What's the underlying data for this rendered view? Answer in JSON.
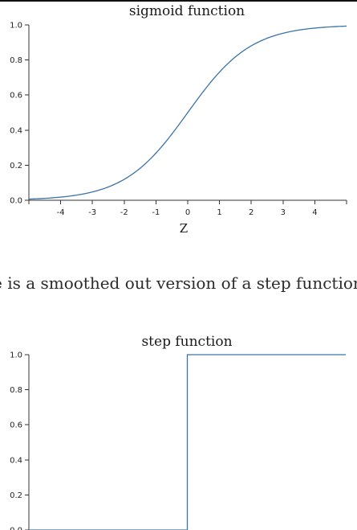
{
  "prose": {
    "text": "e is a smoothed out version of a step function:"
  },
  "chart_data": [
    {
      "type": "line",
      "title": "sigmoid function",
      "xlabel": "Z",
      "ylabel": "",
      "xlim": [
        -5,
        5
      ],
      "ylim": [
        0,
        1
      ],
      "x_ticks": [
        -4,
        -3,
        -2,
        -1,
        0,
        1,
        2,
        3,
        4
      ],
      "y_ticks": [
        0.0,
        0.2,
        0.4,
        0.6,
        0.8,
        1.0
      ],
      "y_tick_labels": [
        "0.0",
        "0.2",
        "0.4",
        "0.6",
        "0.8",
        "1.0"
      ],
      "grid": false,
      "line_color": "#3a73a8",
      "series": [
        {
          "x": [
            -5,
            -4.5,
            -4,
            -3.5,
            -3,
            -2.5,
            -2,
            -1.5,
            -1,
            -0.5,
            0,
            0.5,
            1,
            1.5,
            2,
            2.5,
            3,
            3.5,
            4,
            4.5,
            5
          ],
          "y": [
            0.007,
            0.011,
            0.018,
            0.029,
            0.047,
            0.076,
            0.119,
            0.182,
            0.269,
            0.378,
            0.5,
            0.622,
            0.731,
            0.818,
            0.881,
            0.924,
            0.953,
            0.971,
            0.982,
            0.989,
            0.993
          ]
        }
      ]
    },
    {
      "type": "line",
      "title": "step function",
      "xlabel": "",
      "ylabel": "",
      "xlim": [
        -5,
        5
      ],
      "ylim": [
        0,
        1
      ],
      "y_ticks": [
        0.0,
        0.2,
        0.4,
        0.6,
        0.8,
        1.0
      ],
      "y_tick_labels": [
        "0.0",
        "0.2",
        "0.4",
        "0.6",
        "0.8",
        "1.0"
      ],
      "grid": false,
      "line_color": "#3a73a8",
      "series": [
        {
          "x": [
            -5,
            0,
            0,
            5
          ],
          "y": [
            0,
            0,
            1,
            1
          ]
        }
      ]
    }
  ]
}
